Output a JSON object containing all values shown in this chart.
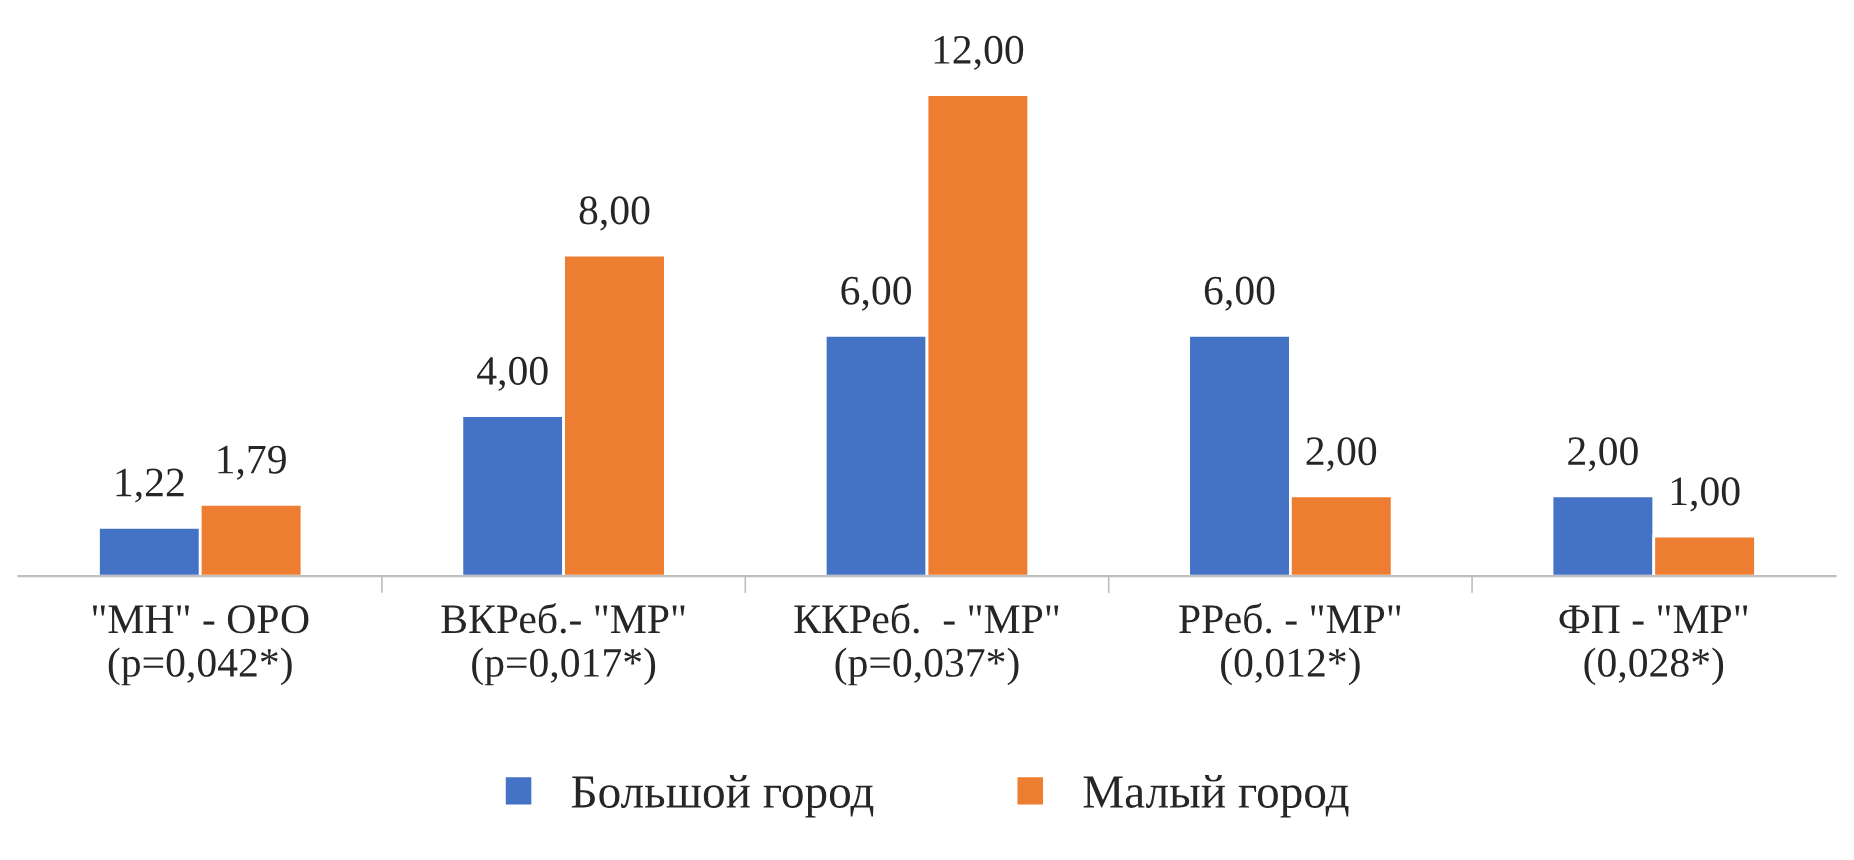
{
  "chart_data": {
    "type": "bar",
    "categories": [
      "\"МН\" - ОРО\n(p=0,042*)",
      "ВКРеб.- \"МР\"\n(p=0,017*)",
      "ККРеб.  - \"МР\"\n(p=0,037*)",
      "РРеб. - \"МР\"\n(0,012*)",
      "ФП - \"МР\"\n(0,028*)"
    ],
    "series": [
      {
        "name": "Большой город",
        "color": "#4472c4",
        "values": [
          1.22,
          4,
          6,
          6,
          2
        ],
        "value_labels": [
          "1,22",
          "4,00",
          "6,00",
          "6,00",
          "2,00"
        ]
      },
      {
        "name": "Малый город",
        "color": "#ed7d31",
        "values": [
          1.79,
          8,
          12,
          2,
          1
        ],
        "value_labels": [
          "1,79",
          "8,00",
          "12,00",
          "2,00",
          "1,00"
        ]
      }
    ],
    "legend": "bottom",
    "grid": false
  }
}
